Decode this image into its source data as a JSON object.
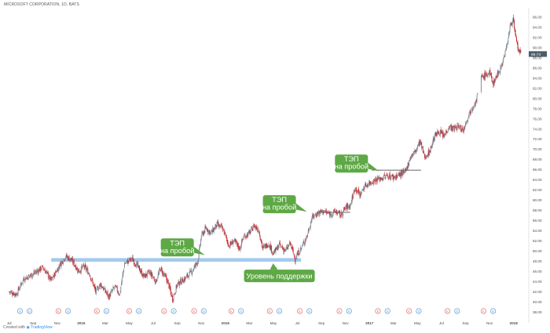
{
  "header": {
    "title": "MICROSOFT CORPORATION, 1D, BATS"
  },
  "footer": {
    "created_with": "Created with",
    "brand": "TradingView"
  },
  "colors": {
    "up_candle": "#7b8691",
    "down_candle": "#c2252a",
    "support_band": "#9ec7ec",
    "resistance_line": "#333333",
    "callout_fill": "#5ea845",
    "callout_text": "#ffffff",
    "price_tag": "#4d5b66",
    "dividend_badge": "#e05a5a",
    "split_badge": "#3f8fd0"
  },
  "chart_data": {
    "type": "candlestick",
    "series_name": "MSFT",
    "x_ticks": [
      "Jul",
      "Sep",
      "Nov",
      "2015",
      "Mar",
      "May",
      "Jul",
      "Sep",
      "Nov",
      "2016",
      "Mar",
      "May",
      "Jul",
      "Sep",
      "Nov",
      "2017",
      "Mar",
      "May",
      "Jul",
      "Sep",
      "Nov",
      "2018"
    ],
    "x_tick_months": [
      0,
      2,
      4,
      6,
      8,
      10,
      12,
      14,
      16,
      18,
      20,
      22,
      24,
      26,
      28,
      30,
      32,
      34,
      36,
      38,
      40,
      42
    ],
    "x_range_months": [
      -0.5,
      43.2
    ],
    "y_ticks": [
      "38.00",
      "40.00",
      "42.00",
      "44.00",
      "46.00",
      "48.00",
      "50.00",
      "52.00",
      "54.00",
      "56.00",
      "58.00",
      "60.00",
      "62.00",
      "64.00",
      "66.00",
      "68.00",
      "70.00",
      "72.00",
      "74.00",
      "76.00",
      "78.00",
      "80.00",
      "82.00",
      "84.00",
      "86.00",
      "88.00",
      "90.00",
      "92.00",
      "94.00",
      "96.00"
    ],
    "ylim": [
      36.8,
      97.2
    ],
    "last_price": "88.73",
    "price_path": [
      [
        0,
        42.0
      ],
      [
        0.6,
        41.5
      ],
      [
        1.2,
        44.5
      ],
      [
        2,
        45.5
      ],
      [
        2.8,
        46.8
      ],
      [
        3.5,
        44.2
      ],
      [
        4.2,
        47.2
      ],
      [
        4.7,
        49.0
      ],
      [
        5.2,
        48.2
      ],
      [
        5.8,
        46.0
      ],
      [
        6.2,
        47.0
      ],
      [
        6.7,
        45.5
      ],
      [
        7.2,
        42.0
      ],
      [
        7.6,
        43.5
      ],
      [
        8.3,
        41.0
      ],
      [
        8.8,
        43.0
      ],
      [
        9.2,
        41.5
      ],
      [
        9.6,
        47.5
      ],
      [
        10.2,
        48.5
      ],
      [
        10.7,
        47.0
      ],
      [
        11.2,
        45.0
      ],
      [
        11.7,
        45.8
      ],
      [
        12.2,
        44.0
      ],
      [
        12.6,
        46.5
      ],
      [
        13.2,
        44.0
      ],
      [
        13.6,
        40.5
      ],
      [
        14.0,
        43.5
      ],
      [
        14.6,
        44.5
      ],
      [
        15.2,
        46.0
      ],
      [
        15.7,
        48.0
      ],
      [
        16.0,
        53.0
      ],
      [
        16.4,
        54.5
      ],
      [
        16.8,
        53.5
      ],
      [
        17.3,
        55.2
      ],
      [
        17.8,
        54.3
      ],
      [
        18.3,
        51.0
      ],
      [
        18.7,
        52.0
      ],
      [
        19.2,
        50.5
      ],
      [
        19.5,
        52.8
      ],
      [
        20.0,
        53.5
      ],
      [
        20.4,
        55.0
      ],
      [
        20.8,
        54.0
      ],
      [
        21.1,
        50.5
      ],
      [
        21.6,
        51.5
      ],
      [
        22.0,
        49.5
      ],
      [
        22.5,
        51.2
      ],
      [
        23.0,
        50.0
      ],
      [
        23.4,
        51.5
      ],
      [
        23.8,
        48.5
      ],
      [
        24.3,
        50.5
      ],
      [
        24.8,
        53.0
      ],
      [
        25.2,
        56.5
      ],
      [
        25.7,
        57.5
      ],
      [
        26.2,
        57.8
      ],
      [
        26.7,
        57.2
      ],
      [
        27.2,
        57.8
      ],
      [
        27.6,
        57.0
      ],
      [
        28.0,
        58.5
      ],
      [
        28.4,
        59.0
      ],
      [
        28.8,
        62.5
      ],
      [
        29.2,
        61.0
      ],
      [
        29.6,
        62.8
      ],
      [
        30.1,
        63.5
      ],
      [
        30.5,
        64.0
      ],
      [
        31.0,
        64.3
      ],
      [
        31.5,
        64.8
      ],
      [
        32.0,
        64.5
      ],
      [
        32.5,
        65.0
      ],
      [
        33.0,
        65.5
      ],
      [
        33.4,
        68.5
      ],
      [
        33.8,
        69.5
      ],
      [
        34.2,
        71.5
      ],
      [
        34.6,
        68.5
      ],
      [
        35.0,
        69.5
      ],
      [
        35.4,
        72.5
      ],
      [
        35.8,
        73.5
      ],
      [
        36.2,
        72.5
      ],
      [
        36.6,
        74.5
      ],
      [
        37.0,
        74.0
      ],
      [
        37.4,
        74.5
      ],
      [
        37.8,
        73.8
      ],
      [
        38.2,
        76.5
      ],
      [
        38.6,
        78.5
      ],
      [
        38.9,
        79.5
      ],
      [
        39.2,
        84.0
      ],
      [
        39.6,
        84.5
      ],
      [
        40.0,
        85.0
      ],
      [
        40.3,
        83.0
      ],
      [
        40.6,
        84.5
      ],
      [
        41.0,
        86.5
      ],
      [
        41.4,
        90.0
      ],
      [
        41.7,
        94.0
      ],
      [
        41.95,
        95.8
      ],
      [
        42.15,
        92.0
      ],
      [
        42.4,
        89.5
      ],
      [
        42.6,
        88.73
      ]
    ],
    "gap_after_months": [
      39.0
    ],
    "support_band": {
      "y_from": 47.9,
      "y_to": 48.6,
      "x_from": 3.5,
      "x_to": 24.3
    },
    "resistance_lines": [
      {
        "y": 57.6,
        "x_from": 25.6,
        "x_to": 28.4
      },
      {
        "y": 65.9,
        "x_from": 30.2,
        "x_to": 34.3
      }
    ],
    "callouts": [
      {
        "text": [
          "ТЭП",
          "на пробой"
        ],
        "x": 14.0,
        "y": 50.7,
        "pointer": "right"
      },
      {
        "text": [
          "Уровень поддержки"
        ],
        "x": 22.5,
        "y": 45.1,
        "pointer": "up"
      },
      {
        "text": [
          "ТЭП",
          "на пробой"
        ],
        "x": 22.5,
        "y": 59.2,
        "pointer": "right"
      },
      {
        "text": [
          "ТЭП",
          "на пробой"
        ],
        "x": 28.5,
        "y": 67.2,
        "pointer": "right"
      }
    ],
    "event_markers": [
      {
        "x": 0.9,
        "kind": "S"
      },
      {
        "x": 1.7,
        "kind": "D"
      },
      {
        "x": 4.1,
        "kind": "E"
      },
      {
        "x": 4.9,
        "kind": "D"
      },
      {
        "x": 7.3,
        "kind": "E"
      },
      {
        "x": 8.1,
        "kind": "D"
      },
      {
        "x": 10.0,
        "kind": "E"
      },
      {
        "x": 10.8,
        "kind": "D"
      },
      {
        "x": 12.9,
        "kind": "E"
      },
      {
        "x": 13.7,
        "kind": "D"
      },
      {
        "x": 15.4,
        "kind": "E"
      },
      {
        "x": 16.2,
        "kind": "D"
      },
      {
        "x": 18.5,
        "kind": "E"
      },
      {
        "x": 19.3,
        "kind": "D"
      },
      {
        "x": 21.7,
        "kind": "E"
      },
      {
        "x": 22.5,
        "kind": "D"
      },
      {
        "x": 24.2,
        "kind": "E"
      },
      {
        "x": 25.0,
        "kind": "D"
      },
      {
        "x": 27.5,
        "kind": "E"
      },
      {
        "x": 28.3,
        "kind": "D"
      },
      {
        "x": 30.7,
        "kind": "E"
      },
      {
        "x": 31.5,
        "kind": "D"
      },
      {
        "x": 33.3,
        "kind": "E"
      },
      {
        "x": 34.1,
        "kind": "D"
      },
      {
        "x": 36.5,
        "kind": "E"
      },
      {
        "x": 37.3,
        "kind": "D"
      },
      {
        "x": 39.5,
        "kind": "E"
      },
      {
        "x": 40.3,
        "kind": "D"
      }
    ]
  }
}
